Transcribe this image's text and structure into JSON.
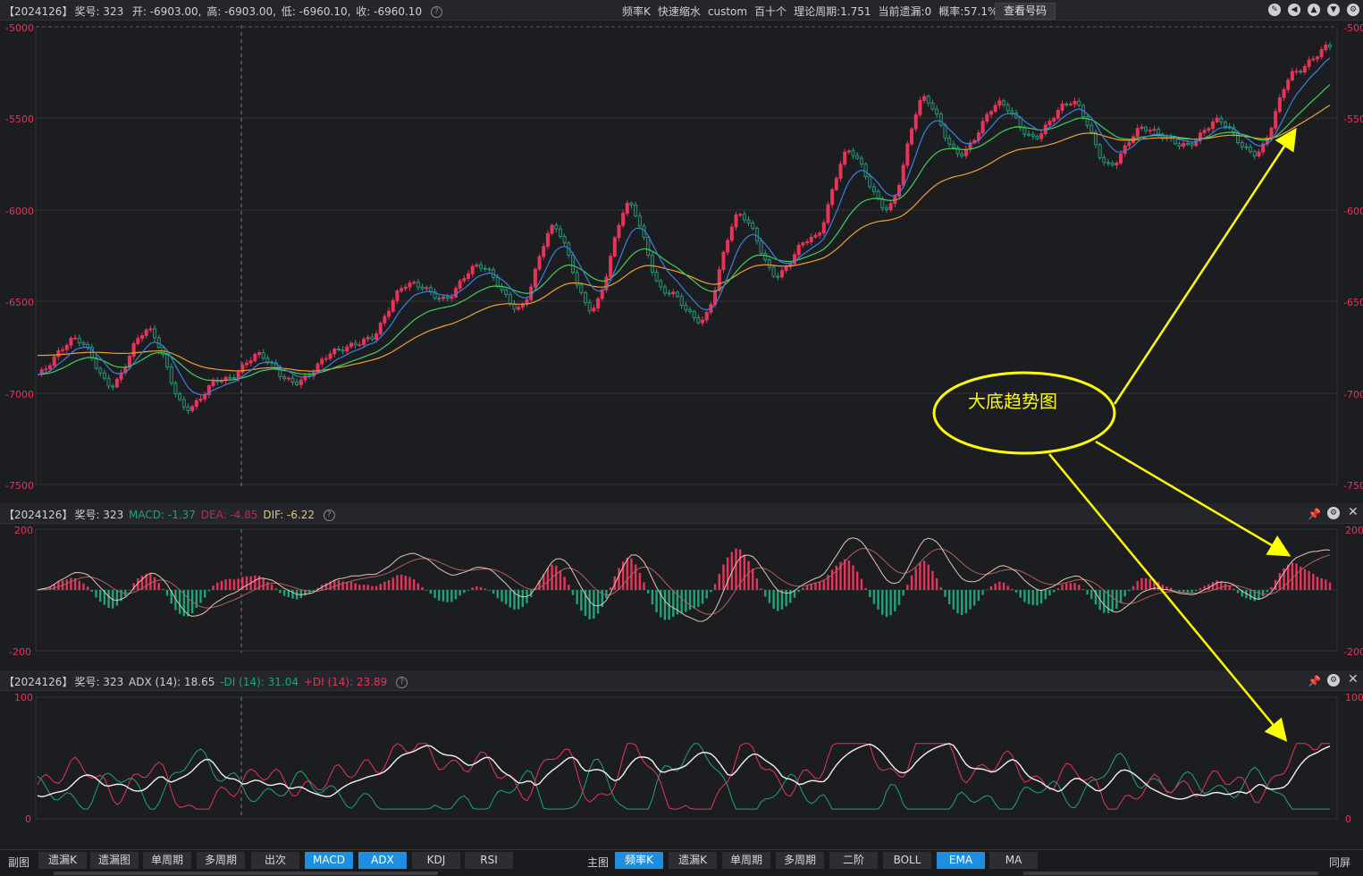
{
  "main_panel": {
    "issue": "【2024126】",
    "award_label": "奖号: 323",
    "open": "开: -6903.00,",
    "high": "高: -6903.00,",
    "low": "低: -6960.10,",
    "close": "收: -6960.10",
    "info": [
      "频率K",
      "快速缩水",
      "custom",
      "百十个",
      "理论周期:1.751",
      "当前遗漏:0",
      "概率:57.1%"
    ],
    "query_button": "查看号码",
    "y_ticks": [
      "-5000",
      "-5500",
      "-6000",
      "-6500",
      "-7000",
      "-7500"
    ],
    "right_ticks": [
      "-500",
      "-550",
      "-600",
      "-650",
      "-700",
      "-750"
    ]
  },
  "macd_panel": {
    "issue": "【2024126】",
    "award_label": "奖号: 323",
    "macd": "MACD: -1.37",
    "dea": "DEA: -4.85",
    "dif": "DIF: -6.22",
    "y_top": "200",
    "y_bottom": "-200",
    "right_top": "200",
    "right_bottom": "-200"
  },
  "adx_panel": {
    "issue": "【2024126】",
    "award_label": "奖号: 323",
    "adx": "ADX (14): 18.65",
    "minus_di": "-DI (14): 31.04",
    "plus_di": "+DI (14): 23.89",
    "y_top": "100",
    "y_bottom": "0",
    "right_top": "100",
    "right_bottom": "0"
  },
  "annotation": {
    "text": "大底趋势图"
  },
  "bottom_bar": {
    "sub_label": "副图",
    "sub_buttons": [
      "遗漏K",
      "遗漏图",
      "单周期",
      "多周期",
      "出次",
      "MACD",
      "ADX",
      "KDJ",
      "RSI"
    ],
    "sub_active": [
      "MACD",
      "ADX"
    ],
    "main_label": "主图",
    "main_buttons": [
      "频率K",
      "遗漏K",
      "单周期",
      "多周期",
      "二阶",
      "BOLL",
      "EMA",
      "MA"
    ],
    "main_active": [
      "频率K",
      "EMA"
    ],
    "fullscreen": "同屏"
  },
  "colors": {
    "up": "#e8335a",
    "down": "#1fa37a",
    "ema_fast": "#3a7fe0",
    "ema_mid": "#3fcf5a",
    "ema_slow": "#f0a030",
    "annotation": "#ffff00",
    "active_button": "#1e8fe0"
  },
  "chart_data": [
    {
      "type": "candlestick",
      "y_range": [
        -7500,
        -5000
      ],
      "close_path": [
        -6900,
        -6700,
        -6950,
        -6650,
        -7080,
        -6930,
        -6800,
        -6950,
        -6780,
        -6700,
        -6400,
        -6480,
        -6300,
        -6540,
        -6100,
        -6550,
        -5980,
        -6450,
        -6600,
        -6020,
        -6350,
        -6150,
        -5680,
        -6000,
        -5400,
        -5700,
        -5420,
        -5600,
        -5400,
        -5750,
        -5550,
        -5650,
        -5520,
        -5700,
        -5260,
        -5100
      ]
    },
    {
      "type": "line",
      "y_range": [
        -200,
        200
      ]
    },
    {
      "type": "line",
      "y_range": [
        0,
        100
      ]
    }
  ]
}
